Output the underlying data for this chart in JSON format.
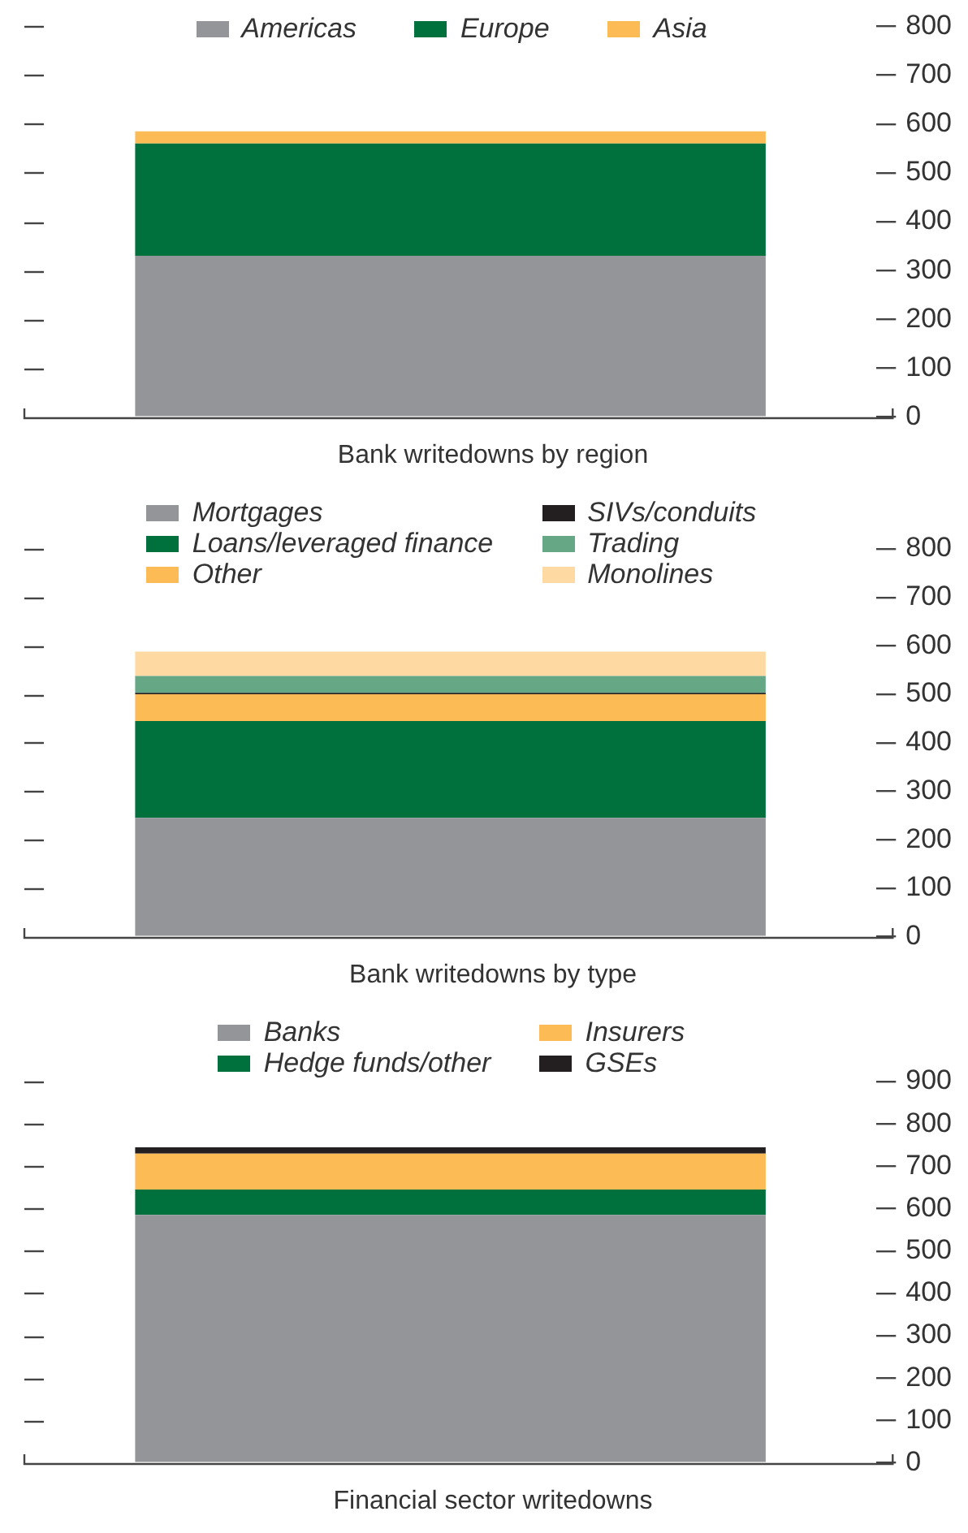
{
  "chart_data": [
    {
      "type": "bar",
      "title": "Bank writedowns by region",
      "categories": [
        null
      ],
      "stacked": true,
      "legend": "top",
      "grid": false,
      "tick_labels": "y",
      "ylim": [
        0,
        800
      ],
      "yticks": [
        0,
        100,
        200,
        300,
        400,
        500,
        600,
        700,
        800
      ],
      "series": [
        {
          "name": "Americas",
          "color": "#939598",
          "values": [
            330
          ]
        },
        {
          "name": "Europe",
          "color": "#00703c",
          "values": [
            230
          ]
        },
        {
          "name": "Asia",
          "color": "#fdbb55",
          "values": [
            25
          ]
        }
      ]
    },
    {
      "type": "bar",
      "title": "Bank writedowns by type",
      "categories": [
        null
      ],
      "stacked": true,
      "legend": "top",
      "grid": false,
      "tick_labels": "y",
      "ylim": [
        0,
        800
      ],
      "yticks": [
        0,
        100,
        200,
        300,
        400,
        500,
        600,
        700,
        800
      ],
      "series": [
        {
          "name": "Mortgages",
          "color": "#939598",
          "values": [
            245
          ]
        },
        {
          "name": "Loans/leveraged finance",
          "color": "#00703c",
          "values": [
            200
          ]
        },
        {
          "name": "Other",
          "color": "#fdbb55",
          "values": [
            55
          ]
        },
        {
          "name": "SIVs/conduits",
          "color": "#231f20",
          "values": [
            3
          ]
        },
        {
          "name": "Trading",
          "color": "#66a886",
          "values": [
            35
          ]
        },
        {
          "name": "Monolines",
          "color": "#fed9a2",
          "values": [
            50
          ]
        }
      ]
    },
    {
      "type": "bar",
      "title": "Financial sector writedowns",
      "categories": [
        null
      ],
      "stacked": true,
      "legend": "top",
      "grid": false,
      "tick_labels": "y",
      "ylim": [
        0,
        900
      ],
      "yticks": [
        0,
        100,
        200,
        300,
        400,
        500,
        600,
        700,
        800,
        900
      ],
      "series": [
        {
          "name": "Banks",
          "color": "#939598",
          "values": [
            585
          ]
        },
        {
          "name": "Hedge funds/other",
          "color": "#00703c",
          "values": [
            60
          ]
        },
        {
          "name": "Insurers",
          "color": "#fdbb55",
          "values": [
            85
          ]
        },
        {
          "name": "GSEs",
          "color": "#231f20",
          "values": [
            15
          ]
        }
      ]
    }
  ]
}
